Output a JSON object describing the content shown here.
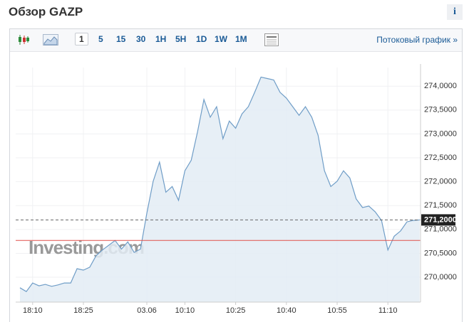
{
  "header": {
    "title": "Обзор GAZP",
    "info": "i"
  },
  "toolbar": {
    "intervals": [
      "1",
      "5",
      "15",
      "30",
      "1H",
      "5H",
      "1D",
      "1W",
      "1M"
    ],
    "stream_link": "Потоковый график »"
  },
  "chart_data": {
    "type": "area",
    "watermark": "Investing.com",
    "color": "#6f9dc7",
    "fill": "#e3ecf5",
    "categories": [
      null,
      null,
      "18:10",
      null,
      null,
      null,
      null,
      null,
      null,
      null,
      "18:25",
      null,
      null,
      null,
      null,
      null,
      null,
      null,
      null,
      null,
      "03.06",
      null,
      null,
      null,
      null,
      null,
      "10:10",
      null,
      null,
      null,
      null,
      null,
      null,
      null,
      "10:25",
      null,
      null,
      null,
      null,
      null,
      null,
      null,
      "10:40",
      null,
      null,
      null,
      null,
      null,
      null,
      null,
      "10:55",
      null,
      null,
      null,
      null,
      null,
      null,
      null,
      "11:10",
      null,
      null,
      null,
      null,
      null
    ],
    "values": [
      269.78,
      269.7,
      269.88,
      269.82,
      269.85,
      269.81,
      269.84,
      269.88,
      269.88,
      270.18,
      270.15,
      270.21,
      270.45,
      270.57,
      270.67,
      270.77,
      270.59,
      270.74,
      270.52,
      270.59,
      271.34,
      272.01,
      272.41,
      271.78,
      271.9,
      271.61,
      272.23,
      272.45,
      273.05,
      273.72,
      273.35,
      273.57,
      272.9,
      273.27,
      273.12,
      273.42,
      273.57,
      273.87,
      274.19,
      274.16,
      274.13,
      273.87,
      273.75,
      273.57,
      273.39,
      273.57,
      273.35,
      272.97,
      272.23,
      271.9,
      272.01,
      272.23,
      272.08,
      271.64,
      271.46,
      271.49,
      271.37,
      271.19,
      270.57,
      270.86,
      270.97,
      271.16,
      271.19,
      271.2
    ],
    "ylim": [
      269.48,
      274.39
    ],
    "yticks": [
      {
        "value": 270.0,
        "label": "270,0000"
      },
      {
        "value": 270.5,
        "label": "270,5000"
      },
      {
        "value": 271.0,
        "label": "271,0000"
      },
      {
        "value": 271.5,
        "label": "271,5000"
      },
      {
        "value": 272.0,
        "label": "272,0000"
      },
      {
        "value": 272.5,
        "label": "272,5000"
      },
      {
        "value": 273.0,
        "label": "273,0000"
      },
      {
        "value": 273.5,
        "label": "273,5000"
      },
      {
        "value": 274.0,
        "label": "274,0000"
      }
    ],
    "current_price": {
      "value": 271.2,
      "label": "271,2000"
    },
    "reference_line": {
      "value": 270.77,
      "color": "#e0504a"
    },
    "grid": true
  }
}
